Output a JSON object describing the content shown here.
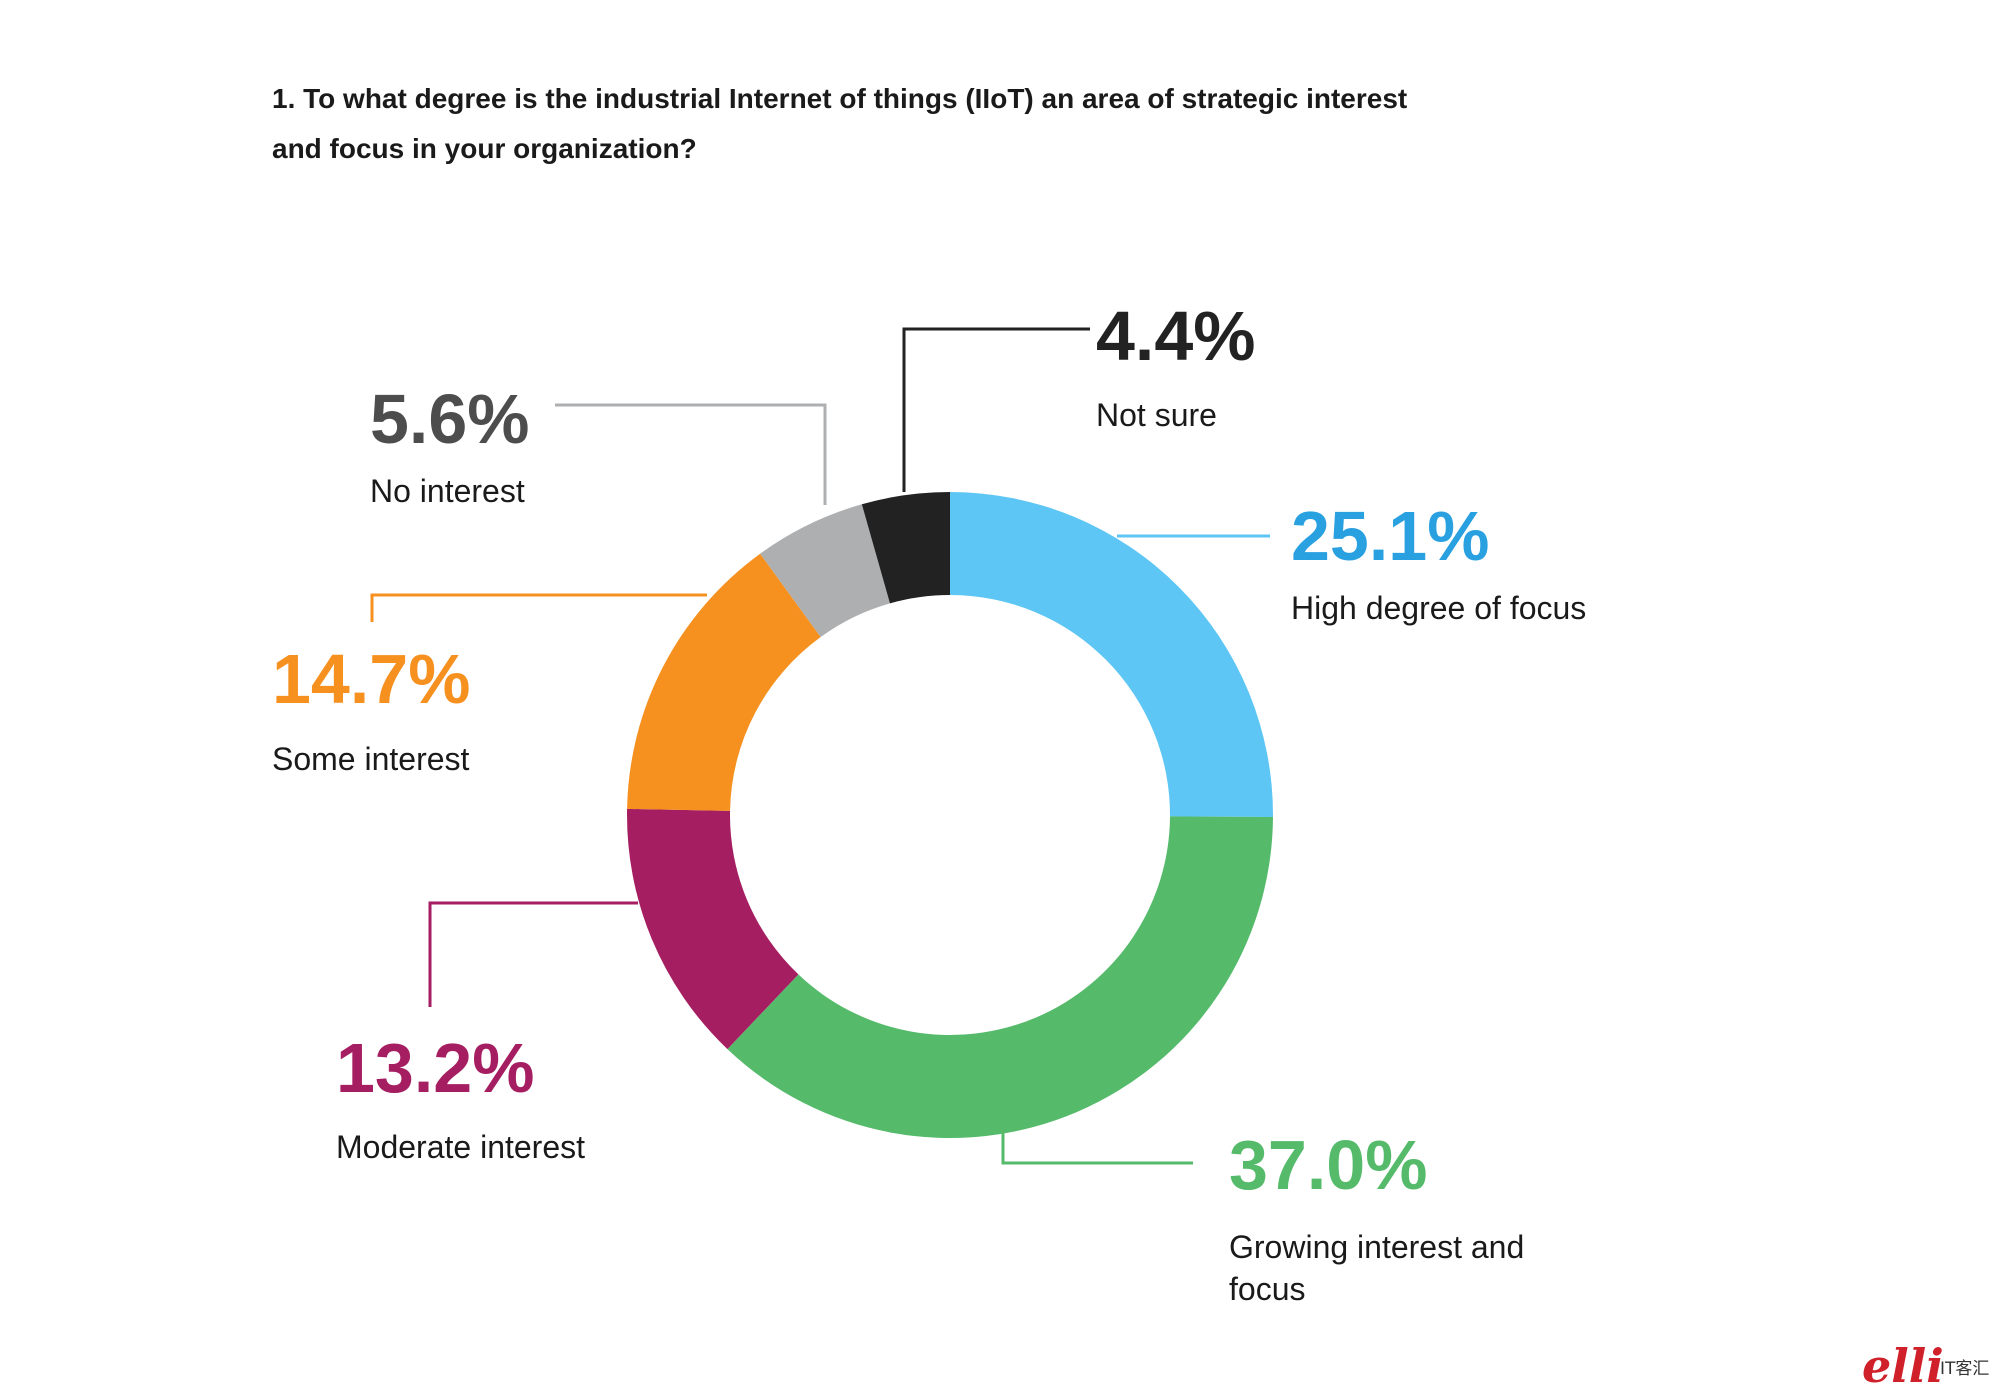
{
  "chart_data": {
    "type": "pie",
    "donut": true,
    "title_lines": [
      "1. To what degree is the industrial Internet of things (IIoT) an area of strategic interest",
      "and focus in your organization?"
    ],
    "unit": "%",
    "slices": [
      {
        "label_lines": [
          "High degree of focus"
        ],
        "value": 25.1,
        "display": "25.1%",
        "color": "#5ec6f5",
        "text_color": "#29a0e0"
      },
      {
        "label_lines": [
          "Growing interest and",
          "focus"
        ],
        "value": 37.0,
        "display": "37.0%",
        "color": "#55bb6b",
        "text_color": "#55bb6b"
      },
      {
        "label_lines": [
          "Moderate interest"
        ],
        "value": 13.2,
        "display": "13.2%",
        "color": "#a51e61",
        "text_color": "#a51e61"
      },
      {
        "label_lines": [
          "Some interest"
        ],
        "value": 14.7,
        "display": "14.7%",
        "color": "#f69120",
        "text_color": "#f69120"
      },
      {
        "label_lines": [
          "No interest"
        ],
        "value": 5.6,
        "display": "5.6%",
        "color": "#aeafb1",
        "text_color": "#4d4d4d"
      },
      {
        "label_lines": [
          "Not sure"
        ],
        "value": 4.4,
        "display": "4.4%",
        "color": "#222222",
        "text_color": "#222222"
      }
    ],
    "legend": "none",
    "grid": false
  },
  "watermark": {
    "script": "elli",
    "text": "IT客汇"
  }
}
